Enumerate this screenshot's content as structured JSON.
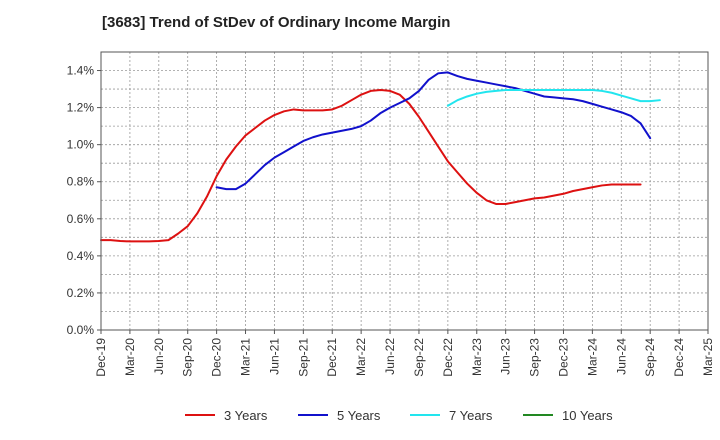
{
  "chart_data": {
    "type": "line",
    "title": "[3683]  Trend of StDev of Ordinary Income Margin",
    "xlabel": "",
    "ylabel": "",
    "x_ticks": [
      "Dec-19",
      "Mar-20",
      "Jun-20",
      "Sep-20",
      "Dec-20",
      "Mar-21",
      "Jun-21",
      "Sep-21",
      "Dec-21",
      "Mar-22",
      "Jun-22",
      "Sep-22",
      "Dec-22",
      "Mar-23",
      "Jun-23",
      "Sep-23",
      "Dec-23",
      "Mar-24",
      "Jun-24",
      "Sep-24",
      "Dec-24",
      "Mar-25"
    ],
    "y_ticks": [
      "0.0%",
      "0.2%",
      "0.4%",
      "0.6%",
      "0.8%",
      "1.0%",
      "1.2%",
      "1.4%"
    ],
    "ylim": [
      0,
      1.5
    ],
    "grid": true,
    "legend_position": "bottom",
    "series": [
      {
        "name": "3 Years",
        "color": "#dd1111",
        "start_index": 0,
        "values": [
          0.485,
          0.485,
          0.48,
          0.478,
          0.478,
          0.478,
          0.48,
          0.485,
          0.52,
          0.56,
          0.63,
          0.72,
          0.83,
          0.92,
          0.99,
          1.05,
          1.09,
          1.13,
          1.16,
          1.18,
          1.19,
          1.185,
          1.185,
          1.185,
          1.19,
          1.21,
          1.24,
          1.27,
          1.29,
          1.295,
          1.29,
          1.27,
          1.22,
          1.15,
          1.07,
          0.99,
          0.91,
          0.85,
          0.79,
          0.74,
          0.7,
          0.68,
          0.68,
          0.69,
          0.7,
          0.71,
          0.715,
          0.725,
          0.735,
          0.75,
          0.76,
          0.77,
          0.78,
          0.785,
          0.785,
          0.785,
          0.785
        ]
      },
      {
        "name": "5 Years",
        "color": "#1111cc",
        "start_index": 12,
        "values": [
          0.77,
          0.76,
          0.76,
          0.79,
          0.84,
          0.89,
          0.93,
          0.96,
          0.99,
          1.02,
          1.04,
          1.055,
          1.065,
          1.075,
          1.085,
          1.1,
          1.13,
          1.17,
          1.2,
          1.225,
          1.25,
          1.29,
          1.35,
          1.385,
          1.39,
          1.37,
          1.355,
          1.345,
          1.335,
          1.325,
          1.315,
          1.305,
          1.29,
          1.275,
          1.26,
          1.255,
          1.25,
          1.245,
          1.235,
          1.22,
          1.205,
          1.19,
          1.175,
          1.155,
          1.115,
          1.035
        ]
      },
      {
        "name": "7 Years",
        "color": "#22e5ee",
        "start_index": 36,
        "values": [
          1.21,
          1.24,
          1.26,
          1.275,
          1.285,
          1.29,
          1.295,
          1.295,
          1.295,
          1.295,
          1.295,
          1.295,
          1.295,
          1.295,
          1.295,
          1.295,
          1.29,
          1.28,
          1.265,
          1.25,
          1.235,
          1.235,
          1.24
        ]
      },
      {
        "name": "10 Years",
        "color": "#228822",
        "start_index": 0,
        "values": []
      }
    ]
  }
}
